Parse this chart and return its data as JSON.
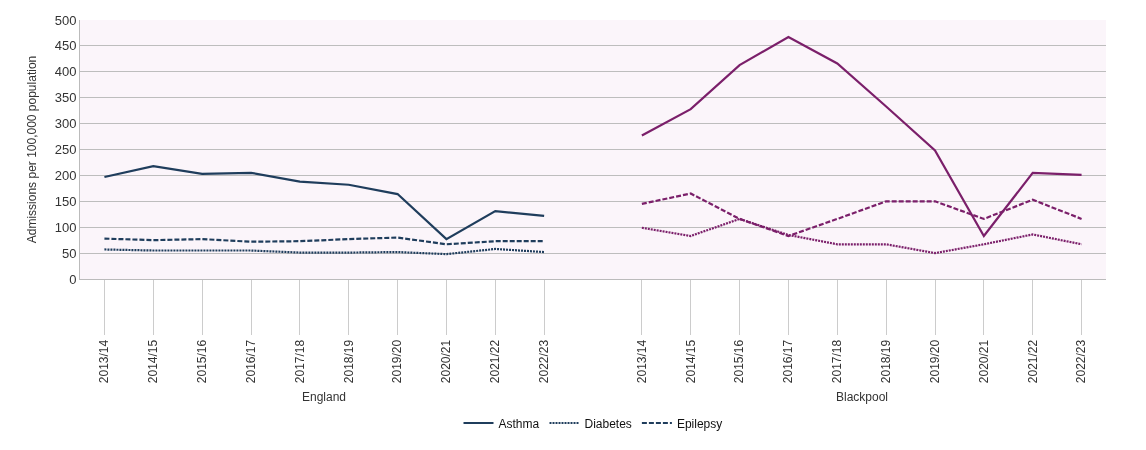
{
  "chart_data": {
    "type": "line",
    "ylabel": "Admissions per 100,000 population",
    "categories": [
      "2013/14",
      "2014/15",
      "2015/16",
      "2016/17",
      "2017/18",
      "2018/19",
      "2019/20",
      "2020/21",
      "2021/22",
      "2022/23",
      null,
      "2013/14",
      "2014/15",
      "2015/16",
      "2016/17",
      "2017/18",
      "2018/19",
      "2019/20",
      "2020/21",
      "2021/22",
      "2022/23"
    ],
    "series": [
      {
        "name": "Asthma",
        "color": "#1f3d5c",
        "line_style": "solid",
        "values": [
          197,
          218,
          203,
          205,
          188,
          182,
          164,
          77,
          131,
          122,
          null,
          null,
          null,
          null,
          null,
          null,
          null,
          null,
          null,
          null,
          null
        ]
      },
      {
        "name": "Diabetes",
        "color": "#1f3d5c",
        "line_style": "dotted",
        "values": [
          57,
          55,
          55,
          55,
          51,
          51,
          52,
          48,
          58,
          52,
          null,
          null,
          null,
          null,
          null,
          null,
          null,
          null,
          null,
          null,
          null
        ]
      },
      {
        "name": "Epilepsy",
        "color": "#1f3d5c",
        "line_style": "dashed",
        "values": [
          78,
          75,
          77,
          72,
          73,
          77,
          80,
          67,
          73,
          73,
          null,
          null,
          null,
          null,
          null,
          null,
          null,
          null,
          null,
          null,
          null
        ]
      },
      {
        "color": "#7b1f6a",
        "line_style": "solid",
        "values": [
          null,
          null,
          null,
          null,
          null,
          null,
          null,
          null,
          null,
          null,
          null,
          277,
          328,
          413,
          467,
          416,
          333,
          248,
          83,
          205,
          201
        ]
      },
      {
        "color": "#7b1f6a",
        "line_style": "dotted",
        "values": [
          null,
          null,
          null,
          null,
          null,
          null,
          null,
          null,
          null,
          null,
          null,
          99,
          83,
          116,
          85,
          67,
          67,
          50,
          67,
          86,
          67
        ]
      },
      {
        "color": "#7b1f6a",
        "line_style": "dashed",
        "values": [
          null,
          null,
          null,
          null,
          null,
          null,
          null,
          null,
          null,
          null,
          null,
          145,
          165,
          116,
          83,
          116,
          150,
          150,
          116,
          153,
          116
        ]
      }
    ],
    "annotations": [
      "England",
      "Blackpool"
    ],
    "ylim": [
      0,
      500
    ],
    "yticks": [
      0,
      50,
      100,
      150,
      200,
      250,
      300,
      350,
      400,
      450,
      500
    ],
    "grid": "y",
    "legend": "bottom",
    "marker": "none"
  }
}
